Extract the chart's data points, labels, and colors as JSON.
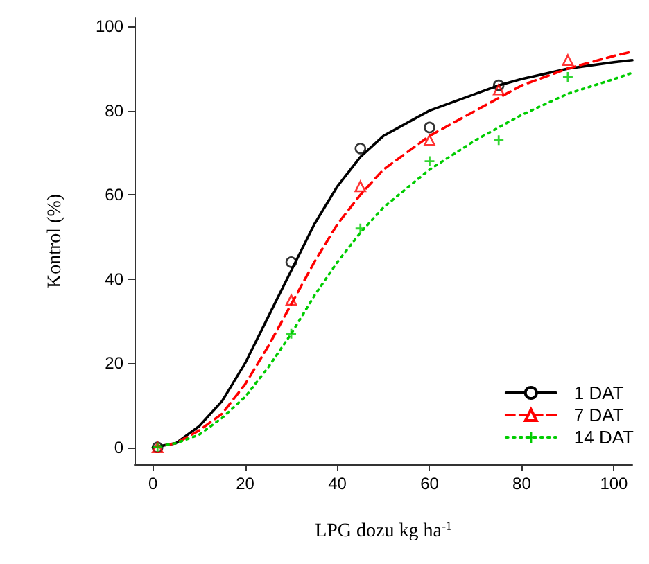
{
  "chart_data": {
    "type": "line",
    "xlabel": "LPG dozu kg ha$^{-1}$",
    "ylabel": "Kontrol (%)",
    "xlim": [
      -4,
      104
    ],
    "xticks": [
      0,
      20,
      40,
      60,
      80,
      100
    ],
    "ylim": [
      -4,
      102
    ],
    "yticks": [
      0,
      20,
      40,
      60,
      80,
      100
    ],
    "grid": false,
    "legend": "bottom right",
    "series": [
      {
        "name": "1 DAT",
        "color": "#000000",
        "line_style": "solid",
        "marker": "none",
        "x": [
          0,
          5,
          10,
          15,
          20,
          25,
          30,
          35,
          40,
          45,
          50,
          60,
          70,
          75,
          80,
          90,
          100,
          104
        ],
        "values": [
          0,
          1,
          5,
          11,
          20,
          31,
          42,
          53,
          62,
          69,
          74,
          80,
          84,
          86,
          87.5,
          90,
          91.5,
          92
        ]
      },
      {
        "name": "7 DAT",
        "color": "#ff0000",
        "line_style": "dashed",
        "marker": "none",
        "x": [
          0,
          5,
          10,
          15,
          20,
          25,
          30,
          35,
          40,
          45,
          50,
          60,
          70,
          75,
          80,
          90,
          100,
          104
        ],
        "values": [
          0,
          1,
          4,
          8,
          15,
          24,
          34,
          44,
          53,
          60,
          66,
          74,
          80,
          83,
          86,
          90,
          93,
          94
        ]
      },
      {
        "name": "14 DAT",
        "color": "#00cc00",
        "line_style": "dotted",
        "marker": "none",
        "x": [
          0,
          5,
          10,
          15,
          20,
          25,
          30,
          35,
          40,
          45,
          50,
          60,
          70,
          75,
          80,
          90,
          100,
          104
        ],
        "values": [
          0,
          1,
          3,
          7,
          12,
          19,
          27,
          36,
          44,
          51,
          57,
          66,
          73,
          76,
          79,
          84,
          87.5,
          89
        ]
      },
      {
        "type": "scatter",
        "color": "#000000",
        "marker": "circle",
        "x": [
          1,
          30,
          45,
          60,
          75
        ],
        "values": [
          0,
          44,
          71,
          76,
          86
        ]
      },
      {
        "type": "scatter",
        "color": "#ff0000",
        "marker": "triangle",
        "x": [
          1,
          30,
          45,
          60,
          75,
          90
        ],
        "values": [
          0,
          35,
          62,
          73,
          85,
          92
        ]
      },
      {
        "type": "scatter",
        "color": "#00cc00",
        "marker": "cross",
        "x": [
          1,
          30,
          45,
          60,
          75,
          90
        ],
        "values": [
          0,
          27,
          52,
          68,
          73,
          88
        ]
      }
    ]
  }
}
